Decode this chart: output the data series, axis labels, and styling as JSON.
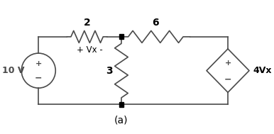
{
  "bg_color": "#ffffff",
  "line_color": "#4a4a4a",
  "node_color": "#000000",
  "title": "(a)",
  "voltage_source_label": "10 V",
  "r1_label": "2",
  "r2_label": "3",
  "r3_label": "6",
  "dep_source_label": "4Vx",
  "vx_label": "+ Vx -",
  "figsize": [
    3.86,
    1.89
  ],
  "dpi": 100,
  "xlim": [
    0,
    11
  ],
  "ylim": [
    0,
    5.5
  ]
}
